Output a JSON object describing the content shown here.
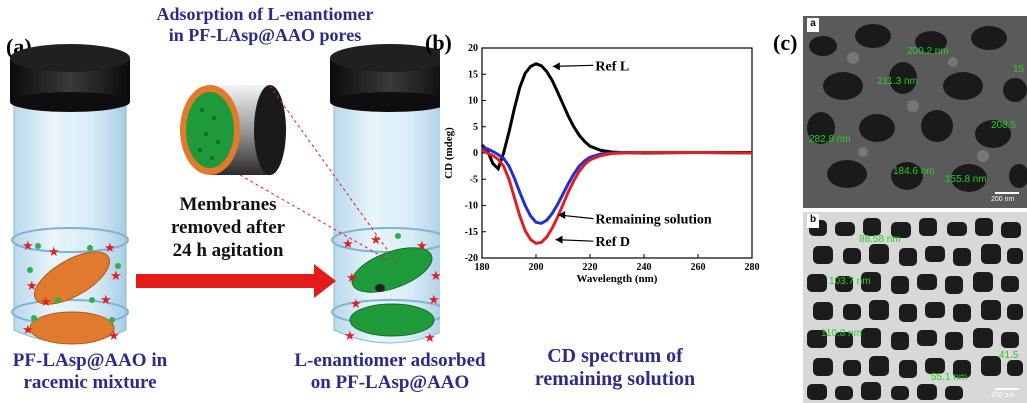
{
  "panel_a": {
    "label": "(a)",
    "top_caption_line1": "Adsorption of L-enantiomer",
    "top_caption_line2": "in PF-LAsp@AAO pores",
    "arrow_line1": "Membranes",
    "arrow_line2": "removed after",
    "arrow_line3": "24 h agitation",
    "left_caption_line1": "PF-LAsp@AAO in",
    "left_caption_line2": "racemic mixture",
    "right_caption_line1": "L-enantiomer adsorbed",
    "right_caption_line2": "on PF-LAsp@AAO"
  },
  "panel_b": {
    "label": "(b)",
    "caption_line1": "CD spectrum of",
    "caption_line2": "remaining solution"
  },
  "panel_c": {
    "label": "(c)",
    "sub_a": "a",
    "sub_b": "b",
    "scale_a": "200 nm",
    "scale_b": "200 nm",
    "measurements_a": [
      "200.2 nm",
      "211.3 nm",
      "282.8 nm",
      "184.6 nm",
      "155.8 nm",
      "208.5",
      "15"
    ],
    "measurements_b": [
      "88.58 nm",
      "103.7 nm",
      "110.8 nm",
      "55.1 nm",
      "41.5"
    ]
  },
  "chart_data": {
    "type": "line",
    "xlabel": "Wavelength  (nm)",
    "ylabel": "CD (mdeg)",
    "xlim": [
      180,
      280
    ],
    "ylim": [
      -20,
      20
    ],
    "xticks": [
      180,
      200,
      220,
      240,
      260,
      280
    ],
    "yticks": [
      -20,
      -15,
      -10,
      -5,
      0,
      5,
      10,
      15,
      20
    ],
    "series": [
      {
        "name": "Ref L",
        "color": "#000000",
        "points": [
          [
            180,
            1.5
          ],
          [
            182,
            0.5
          ],
          [
            184,
            -2.0
          ],
          [
            186,
            -3.0
          ],
          [
            187,
            -1.5
          ],
          [
            188,
            0.0
          ],
          [
            190,
            4.0
          ],
          [
            192,
            8.5
          ],
          [
            194,
            12.5
          ],
          [
            196,
            15.2
          ],
          [
            198,
            16.5
          ],
          [
            200,
            17.0
          ],
          [
            202,
            16.6
          ],
          [
            204,
            15.5
          ],
          [
            206,
            13.8
          ],
          [
            208,
            11.6
          ],
          [
            210,
            9.3
          ],
          [
            212,
            7.0
          ],
          [
            214,
            5.0
          ],
          [
            216,
            3.4
          ],
          [
            218,
            2.2
          ],
          [
            220,
            1.3
          ],
          [
            224,
            0.5
          ],
          [
            228,
            0.2
          ],
          [
            232,
            0.1
          ],
          [
            240,
            0.0
          ],
          [
            260,
            0.1
          ],
          [
            280,
            0.1
          ]
        ]
      },
      {
        "name": "Remaining solution",
        "color": "#1f2fd8",
        "points": [
          [
            180,
            1.0
          ],
          [
            182,
            0.8
          ],
          [
            184,
            0.3
          ],
          [
            186,
            -0.3
          ],
          [
            188,
            -1.0
          ],
          [
            190,
            -2.5
          ],
          [
            192,
            -4.8
          ],
          [
            194,
            -7.5
          ],
          [
            196,
            -10.0
          ],
          [
            198,
            -12.0
          ],
          [
            200,
            -13.2
          ],
          [
            202,
            -13.4
          ],
          [
            204,
            -12.8
          ],
          [
            206,
            -11.5
          ],
          [
            208,
            -9.8
          ],
          [
            210,
            -7.8
          ],
          [
            212,
            -5.8
          ],
          [
            214,
            -4.0
          ],
          [
            216,
            -2.5
          ],
          [
            218,
            -1.5
          ],
          [
            220,
            -0.8
          ],
          [
            224,
            -0.2
          ],
          [
            228,
            0.0
          ],
          [
            232,
            0.1
          ],
          [
            240,
            0.1
          ],
          [
            260,
            0.1
          ],
          [
            280,
            0.0
          ]
        ]
      },
      {
        "name": "Ref D",
        "color": "#e02020",
        "points": [
          [
            180,
            0.5
          ],
          [
            182,
            0.0
          ],
          [
            184,
            -0.5
          ],
          [
            186,
            -1.2
          ],
          [
            188,
            -2.5
          ],
          [
            190,
            -5.0
          ],
          [
            192,
            -8.5
          ],
          [
            194,
            -12.0
          ],
          [
            196,
            -14.8
          ],
          [
            198,
            -16.5
          ],
          [
            200,
            -17.2
          ],
          [
            202,
            -17.0
          ],
          [
            204,
            -16.0
          ],
          [
            206,
            -14.3
          ],
          [
            208,
            -12.2
          ],
          [
            210,
            -9.8
          ],
          [
            212,
            -7.4
          ],
          [
            214,
            -5.3
          ],
          [
            216,
            -3.5
          ],
          [
            218,
            -2.2
          ],
          [
            220,
            -1.3
          ],
          [
            224,
            -0.5
          ],
          [
            228,
            -0.1
          ],
          [
            232,
            0.0
          ],
          [
            240,
            0.1
          ],
          [
            260,
            0.1
          ],
          [
            280,
            0.0
          ]
        ]
      }
    ],
    "annotations": [
      "Ref L",
      "Remaining solution",
      "Ref D"
    ]
  }
}
